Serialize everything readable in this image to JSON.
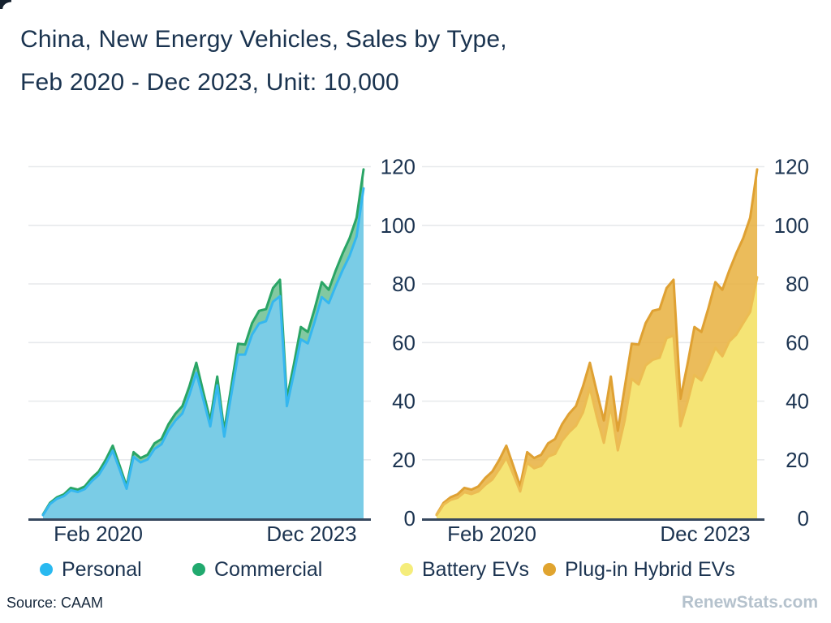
{
  "header": {
    "title_line1": "China, New Energy Vehicles, Sales by Type,",
    "title_line2": "Feb 2020 - Dec 2023, Unit: 10,000"
  },
  "footer": {
    "source": "Source: CAAM",
    "watermark": "RenewStats.com"
  },
  "colors": {
    "title_text": "#1A334F",
    "axis_text": "#1B3350",
    "axis_line": "#36485E",
    "gridline": "#E7E9EC",
    "personal": "#29B9F0",
    "commercial": "#21A96E",
    "battery_ev": "#F5ED7B",
    "plugin_hybrid": "#E0A42F",
    "watermark": "#B5C2CD"
  },
  "legend": [
    {
      "id": "personal",
      "label": "Personal",
      "dot_color": "#29B9F0"
    },
    {
      "id": "commercial",
      "label": "Commercial",
      "dot_color": "#21A96E"
    },
    {
      "id": "battery-evs",
      "label": "Battery EVs",
      "dot_color": "#F5ED7B"
    },
    {
      "id": "plugin-hybrid-evs",
      "label": "Plug-in Hybrid EVs",
      "dot_color": "#E0A42F"
    }
  ],
  "chart_data": [
    {
      "id": "sales-by-user-type",
      "type": "area",
      "stacked": true,
      "title": "China NEV monthly sales split by Personal vs Commercial (unit: 10,000 vehicles)",
      "x": [
        "Feb 2020",
        "Mar 2020",
        "Apr 2020",
        "May 2020",
        "Jun 2020",
        "Jul 2020",
        "Aug 2020",
        "Sep 2020",
        "Oct 2020",
        "Nov 2020",
        "Dec 2020",
        "Jan 2021",
        "Feb 2021",
        "Mar 2021",
        "Apr 2021",
        "May 2021",
        "Jun 2021",
        "Jul 2021",
        "Aug 2021",
        "Sep 2021",
        "Oct 2021",
        "Nov 2021",
        "Dec 2021",
        "Jan 2022",
        "Feb 2022",
        "Mar 2022",
        "Apr 2022",
        "May 2022",
        "Jun 2022",
        "Jul 2022",
        "Aug 2022",
        "Sep 2022",
        "Oct 2022",
        "Nov 2022",
        "Dec 2022",
        "Jan 2023",
        "Feb 2023",
        "Mar 2023",
        "Apr 2023",
        "May 2023",
        "Jun 2023",
        "Jul 2023",
        "Aug 2023",
        "Sep 2023",
        "Oct 2023",
        "Nov 2023",
        "Dec 2023"
      ],
      "xtick_labels": [
        "Feb 2020",
        "Dec 2023"
      ],
      "ylim": [
        0,
        120
      ],
      "yticks": [
        0,
        20,
        40,
        60,
        80,
        100,
        120
      ],
      "grid": true,
      "legend_position": "bottom",
      "series": [
        {
          "name": "Personal",
          "fill": "#79CCF2",
          "stroke": "#35B7EF",
          "values": [
            1.1,
            4.9,
            6.7,
            7.6,
            9.6,
            9.0,
            10.0,
            12.7,
            14.8,
            18.6,
            23.1,
            16.6,
            10.1,
            21.0,
            19.1,
            20.1,
            23.7,
            25.3,
            30.0,
            33.4,
            35.8,
            42.1,
            49.7,
            40.6,
            31.4,
            45.4,
            27.9,
            41.9,
            55.9,
            55.9,
            62.7,
            66.5,
            67.3,
            73.9,
            75.8,
            38.3,
            49.4,
            61.1,
            59.7,
            67.3,
            75.5,
            73.4,
            79.3,
            84.7,
            89.6,
            96.2,
            112.6
          ]
        },
        {
          "name": "Commercial",
          "fill": "#6CC090",
          "stroke": "#2AA566",
          "values": [
            0.2,
            0.4,
            0.5,
            0.6,
            0.8,
            0.8,
            0.9,
            1.1,
            1.2,
            1.4,
            1.7,
            1.3,
            0.9,
            1.6,
            1.5,
            1.6,
            1.9,
            1.8,
            2.1,
            2.3,
            2.5,
            2.9,
            3.4,
            2.5,
            2.0,
            3.0,
            2.0,
            2.8,
            3.7,
            3.4,
            3.9,
            4.3,
            4.1,
            4.7,
            5.6,
            2.5,
            3.1,
            4.2,
            3.9,
            4.4,
            5.1,
            4.6,
            5.3,
            5.7,
            6.0,
            6.4,
            6.5
          ]
        }
      ]
    },
    {
      "id": "sales-by-powertrain",
      "type": "area",
      "stacked": true,
      "title": "China NEV monthly sales split by Battery EVs vs Plug-in Hybrid EVs (unit: 10,000 vehicles)",
      "x": [
        "Feb 2020",
        "Mar 2020",
        "Apr 2020",
        "May 2020",
        "Jun 2020",
        "Jul 2020",
        "Aug 2020",
        "Sep 2020",
        "Oct 2020",
        "Nov 2020",
        "Dec 2020",
        "Jan 2021",
        "Feb 2021",
        "Mar 2021",
        "Apr 2021",
        "May 2021",
        "Jun 2021",
        "Jul 2021",
        "Aug 2021",
        "Sep 2021",
        "Oct 2021",
        "Nov 2021",
        "Dec 2021",
        "Jan 2022",
        "Feb 2022",
        "Mar 2022",
        "Apr 2022",
        "May 2022",
        "Jun 2022",
        "Jul 2022",
        "Aug 2022",
        "Sep 2022",
        "Oct 2022",
        "Nov 2022",
        "Dec 2022",
        "Jan 2023",
        "Feb 2023",
        "Mar 2023",
        "Apr 2023",
        "May 2023",
        "Jun 2023",
        "Jul 2023",
        "Aug 2023",
        "Sep 2023",
        "Oct 2023",
        "Nov 2023",
        "Dec 2023"
      ],
      "xtick_labels": [
        "Feb 2020",
        "Dec 2023"
      ],
      "ylim": [
        0,
        120
      ],
      "yticks": [
        0,
        20,
        40,
        60,
        80,
        100,
        120
      ],
      "grid": true,
      "legend_position": "bottom",
      "series": [
        {
          "name": "Battery EVs",
          "fill": "#F7EB7A",
          "stroke": "#ECBC52",
          "values": [
            1.1,
            4.7,
            6.3,
            7.0,
            8.9,
            8.3,
            9.2,
            11.5,
            13.3,
            16.8,
            20.7,
            15.1,
            9.2,
            19.0,
            17.1,
            17.9,
            21.1,
            22.0,
            26.5,
            29.4,
            31.6,
            36.1,
            44.5,
            34.6,
            25.8,
            38.3,
            23.2,
            33.5,
            47.6,
            45.7,
            52.2,
            54.1,
            54.8,
            61.5,
            62.4,
            31.5,
            39.6,
            48.9,
            47.1,
            52.2,
            58.2,
            55.3,
            60.4,
            62.7,
            66.6,
            70.5,
            82.3
          ]
        },
        {
          "name": "Plug-in Hybrid EVs",
          "fill": "#E8B03E",
          "stroke": "#DFA133",
          "values": [
            0.2,
            0.6,
            0.9,
            1.2,
            1.5,
            1.5,
            1.7,
            2.3,
            2.7,
            3.2,
            4.1,
            2.8,
            1.8,
            3.6,
            3.5,
            3.8,
            4.5,
            5.1,
            5.6,
            6.3,
            6.7,
            8.9,
            8.6,
            8.5,
            7.6,
            10.1,
            6.7,
            11.2,
            12.0,
            13.6,
            14.4,
            16.7,
            16.6,
            17.1,
            19.0,
            9.3,
            12.9,
            16.4,
            16.5,
            19.5,
            22.4,
            22.7,
            24.2,
            27.7,
            29.0,
            32.1,
            36.8
          ]
        }
      ]
    }
  ],
  "legend_layout": {
    "lefts": [
      49,
      237,
      493,
      669
    ]
  }
}
